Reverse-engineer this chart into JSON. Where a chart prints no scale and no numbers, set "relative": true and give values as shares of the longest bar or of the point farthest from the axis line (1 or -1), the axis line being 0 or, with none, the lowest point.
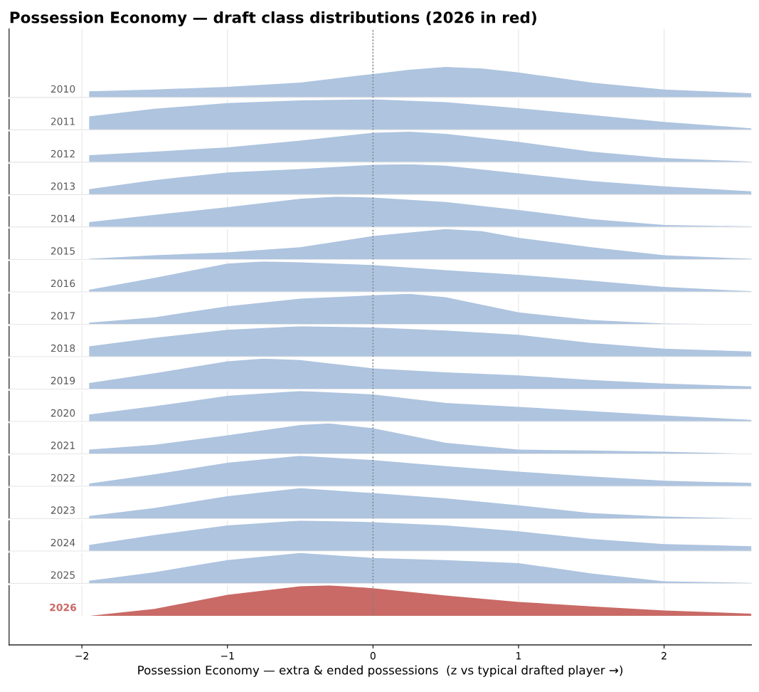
{
  "chart_data": [
    {
      "type": "area",
      "title": "Possession Economy — draft class distributions (2026 in red)",
      "relative": true,
      "xlim": [
        -2.5,
        2.6
      ],
      "tick_labels": false,
      "grid": "x",
      "ref_lines": [
        {
          "axis": "x",
          "value": 0,
          "color": "#808080",
          "line_style": "dotted"
        }
      ],
      "series": [
        {
          "name": "2010",
          "color": "#aec4df",
          "x": [
            -1.95,
            -1.5,
            -1,
            -0.5,
            0,
            0.25,
            0.5,
            0.75,
            1,
            1.5,
            2,
            2.6
          ],
          "values": [
            0.2,
            0.26,
            0.35,
            0.49,
            0.77,
            0.91,
            1,
            0.95,
            0.82,
            0.49,
            0.26,
            0.14
          ]
        }
      ]
    },
    {
      "type": "area",
      "relative": true,
      "xlim": [
        -2.5,
        2.6
      ],
      "tick_labels": false,
      "grid": "x",
      "ref_lines": [
        {
          "axis": "x",
          "value": 0,
          "color": "#808080",
          "line_style": "dotted"
        }
      ],
      "series": [
        {
          "name": "2011",
          "color": "#aec4df",
          "x": [
            -1.95,
            -1.5,
            -1,
            -0.5,
            0,
            0.5,
            1,
            1.5,
            2,
            2.6
          ],
          "values": [
            0.44,
            0.69,
            0.88,
            0.97,
            1,
            0.91,
            0.71,
            0.49,
            0.26,
            0.05
          ]
        }
      ]
    },
    {
      "type": "area",
      "relative": true,
      "xlim": [
        -2.5,
        2.6
      ],
      "tick_labels": false,
      "grid": "x",
      "ref_lines": [
        {
          "axis": "x",
          "value": 0,
          "color": "#808080",
          "line_style": "dotted"
        }
      ],
      "series": [
        {
          "name": "2012",
          "color": "#aec4df",
          "x": [
            -1.95,
            -1.5,
            -1,
            -0.5,
            0,
            0.25,
            0.5,
            1,
            1.5,
            2,
            2.6
          ],
          "values": [
            0.23,
            0.35,
            0.49,
            0.71,
            0.97,
            1,
            0.93,
            0.67,
            0.35,
            0.14,
            0.02
          ]
        }
      ]
    },
    {
      "type": "area",
      "relative": true,
      "xlim": [
        -2.5,
        2.6
      ],
      "tick_labels": false,
      "grid": "x",
      "ref_lines": [
        {
          "axis": "x",
          "value": 0,
          "color": "#808080",
          "line_style": "dotted"
        }
      ],
      "series": [
        {
          "name": "2013",
          "color": "#aec4df",
          "x": [
            -1.95,
            -1.5,
            -1,
            -0.5,
            0,
            0.25,
            0.5,
            1,
            1.5,
            2,
            2.6
          ],
          "values": [
            0.18,
            0.48,
            0.73,
            0.84,
            0.98,
            1,
            0.95,
            0.7,
            0.45,
            0.27,
            0.11
          ]
        }
      ]
    },
    {
      "type": "area",
      "relative": true,
      "xlim": [
        -2.5,
        2.6
      ],
      "tick_labels": false,
      "grid": "x",
      "ref_lines": [
        {
          "axis": "x",
          "value": 0,
          "color": "#808080",
          "line_style": "dotted"
        }
      ],
      "series": [
        {
          "name": "2014",
          "color": "#aec4df",
          "x": [
            -1.95,
            -1.5,
            -1,
            -0.5,
            -0.25,
            0,
            0.5,
            1,
            1.5,
            2,
            2.6
          ],
          "values": [
            0.16,
            0.4,
            0.65,
            0.93,
            1,
            0.97,
            0.82,
            0.56,
            0.26,
            0.07,
            0.02
          ]
        }
      ]
    },
    {
      "type": "area",
      "relative": true,
      "xlim": [
        -2.5,
        2.6
      ],
      "tick_labels": false,
      "grid": "x",
      "ref_lines": [
        {
          "axis": "x",
          "value": 0,
          "color": "#808080",
          "line_style": "dotted"
        }
      ],
      "series": [
        {
          "name": "2015",
          "color": "#aec4df",
          "x": [
            -1.95,
            -1.5,
            -1,
            -0.5,
            0,
            0.5,
            0.75,
            1,
            1.5,
            2,
            2.6
          ],
          "values": [
            0.02,
            0.14,
            0.23,
            0.4,
            0.77,
            1,
            0.93,
            0.71,
            0.4,
            0.14,
            0.02
          ]
        }
      ]
    },
    {
      "type": "area",
      "relative": true,
      "xlim": [
        -2.5,
        2.6
      ],
      "tick_labels": false,
      "grid": "x",
      "ref_lines": [
        {
          "axis": "x",
          "value": 0,
          "color": "#808080",
          "line_style": "dotted"
        }
      ],
      "series": [
        {
          "name": "2016",
          "color": "#aec4df",
          "x": [
            -1.95,
            -1.5,
            -1,
            -0.75,
            -0.5,
            0,
            0.5,
            1,
            1.5,
            2,
            2.6
          ],
          "values": [
            0.07,
            0.46,
            0.93,
            1,
            0.97,
            0.88,
            0.71,
            0.56,
            0.37,
            0.16,
            0.02
          ]
        }
      ]
    },
    {
      "type": "area",
      "relative": true,
      "xlim": [
        -2.5,
        2.6
      ],
      "tick_labels": false,
      "grid": "x",
      "ref_lines": [
        {
          "axis": "x",
          "value": 0,
          "color": "#808080",
          "line_style": "dotted"
        }
      ],
      "series": [
        {
          "name": "2017",
          "color": "#aec4df",
          "x": [
            -1.95,
            -1.5,
            -1,
            -0.5,
            0,
            0.25,
            0.5,
            1,
            1.5,
            2,
            2.6
          ],
          "values": [
            0.05,
            0.23,
            0.59,
            0.84,
            0.95,
            1,
            0.89,
            0.39,
            0.14,
            0.02,
            0
          ]
        }
      ]
    },
    {
      "type": "area",
      "relative": true,
      "xlim": [
        -2.5,
        2.6
      ],
      "tick_labels": false,
      "grid": "x",
      "ref_lines": [
        {
          "axis": "x",
          "value": 0,
          "color": "#808080",
          "line_style": "dotted"
        }
      ],
      "series": [
        {
          "name": "2018",
          "color": "#aec4df",
          "x": [
            -1.95,
            -1.5,
            -1,
            -0.5,
            0,
            0.5,
            1,
            1.5,
            2,
            2.6
          ],
          "values": [
            0.34,
            0.62,
            0.88,
            1,
            0.96,
            0.86,
            0.72,
            0.45,
            0.26,
            0.17
          ]
        }
      ]
    },
    {
      "type": "area",
      "relative": true,
      "xlim": [
        -2.5,
        2.6
      ],
      "tick_labels": false,
      "grid": "x",
      "ref_lines": [
        {
          "axis": "x",
          "value": 0,
          "color": "#808080",
          "line_style": "dotted"
        }
      ],
      "series": [
        {
          "name": "2019",
          "color": "#aec4df",
          "x": [
            -1.95,
            -1.5,
            -1,
            -0.75,
            -0.5,
            0,
            0.5,
            1,
            1.5,
            2,
            2.6
          ],
          "values": [
            0.2,
            0.52,
            0.91,
            1,
            0.95,
            0.68,
            0.55,
            0.45,
            0.3,
            0.18,
            0.09
          ]
        }
      ]
    },
    {
      "type": "area",
      "relative": true,
      "xlim": [
        -2.5,
        2.6
      ],
      "tick_labels": false,
      "grid": "x",
      "ref_lines": [
        {
          "axis": "x",
          "value": 0,
          "color": "#808080",
          "line_style": "dotted"
        }
      ],
      "series": [
        {
          "name": "2020",
          "color": "#aec4df",
          "x": [
            -1.95,
            -1.5,
            -1,
            -0.5,
            0,
            0.5,
            1,
            1.5,
            2,
            2.6
          ],
          "values": [
            0.23,
            0.5,
            0.84,
            1,
            0.89,
            0.61,
            0.48,
            0.34,
            0.2,
            0.05
          ]
        }
      ]
    },
    {
      "type": "area",
      "relative": true,
      "xlim": [
        -2.5,
        2.6
      ],
      "tick_labels": false,
      "grid": "x",
      "ref_lines": [
        {
          "axis": "x",
          "value": 0,
          "color": "#808080",
          "line_style": "dotted"
        }
      ],
      "series": [
        {
          "name": "2021",
          "color": "#aec4df",
          "x": [
            -1.95,
            -1.5,
            -1,
            -0.5,
            -0.3,
            0,
            0.5,
            1,
            1.5,
            2,
            2.6
          ],
          "values": [
            0.14,
            0.3,
            0.61,
            0.95,
            1,
            0.84,
            0.36,
            0.14,
            0.11,
            0.07,
            0
          ]
        }
      ]
    },
    {
      "type": "area",
      "relative": true,
      "xlim": [
        -2.5,
        2.6
      ],
      "tick_labels": false,
      "grid": "x",
      "ref_lines": [
        {
          "axis": "x",
          "value": 0,
          "color": "#808080",
          "line_style": "dotted"
        }
      ],
      "series": [
        {
          "name": "2022",
          "color": "#aec4df",
          "x": [
            -1.95,
            -1.5,
            -1,
            -0.5,
            0,
            0.5,
            1,
            1.5,
            2,
            2.6
          ],
          "values": [
            0.09,
            0.39,
            0.77,
            1,
            0.86,
            0.66,
            0.48,
            0.32,
            0.18,
            0.11
          ]
        }
      ]
    },
    {
      "type": "area",
      "relative": true,
      "xlim": [
        -2.5,
        2.6
      ],
      "tick_labels": false,
      "grid": "x",
      "ref_lines": [
        {
          "axis": "x",
          "value": 0,
          "color": "#808080",
          "line_style": "dotted"
        }
      ],
      "series": [
        {
          "name": "2023",
          "color": "#aec4df",
          "x": [
            -1.95,
            -1.5,
            -1,
            -0.5,
            0,
            0.5,
            1,
            1.5,
            2,
            2.6
          ],
          "values": [
            0.09,
            0.35,
            0.74,
            1,
            0.84,
            0.67,
            0.44,
            0.18,
            0.07,
            0
          ]
        }
      ]
    },
    {
      "type": "area",
      "relative": true,
      "xlim": [
        -2.5,
        2.6
      ],
      "tick_labels": false,
      "grid": "x",
      "ref_lines": [
        {
          "axis": "x",
          "value": 0,
          "color": "#808080",
          "line_style": "dotted"
        }
      ],
      "series": [
        {
          "name": "2024",
          "color": "#aec4df",
          "x": [
            -1.95,
            -1.5,
            -1,
            -0.5,
            0,
            0.5,
            1,
            1.5,
            2,
            2.6
          ],
          "values": [
            0.2,
            0.53,
            0.84,
            1,
            0.95,
            0.84,
            0.65,
            0.4,
            0.23,
            0.16
          ]
        }
      ]
    },
    {
      "type": "area",
      "relative": true,
      "xlim": [
        -2.5,
        2.6
      ],
      "tick_labels": false,
      "grid": "x",
      "ref_lines": [
        {
          "axis": "x",
          "value": 0,
          "color": "#808080",
          "line_style": "dotted"
        }
      ],
      "series": [
        {
          "name": "2025",
          "color": "#aec4df",
          "x": [
            -1.95,
            -1.5,
            -1,
            -0.5,
            0,
            0.5,
            1,
            1.5,
            2,
            2.6
          ],
          "values": [
            0.09,
            0.37,
            0.77,
            1,
            0.84,
            0.77,
            0.67,
            0.33,
            0.07,
            0.02
          ]
        }
      ]
    },
    {
      "type": "area",
      "xlabel": "Possession Economy — extra & ended possessions  (z vs typical drafted player →)",
      "relative": true,
      "xlim": [
        -2.5,
        2.6
      ],
      "xticks": [
        {
          "value": -2,
          "label": "−2"
        },
        {
          "value": -1,
          "label": "−1"
        },
        0,
        1,
        2
      ],
      "tick_labels": "x",
      "grid": "x",
      "ref_lines": [
        {
          "axis": "x",
          "value": 0,
          "color": "#808080",
          "line_style": "dotted"
        }
      ],
      "series": [
        {
          "name": "2026",
          "color": "#c96a66",
          "x": [
            -1.95,
            -1.5,
            -1,
            -0.5,
            -0.3,
            0,
            0.5,
            1,
            1.5,
            2,
            2.6
          ],
          "values": [
            0,
            0.23,
            0.69,
            0.97,
            1,
            0.91,
            0.67,
            0.46,
            0.31,
            0.18,
            0.07
          ]
        }
      ]
    }
  ]
}
